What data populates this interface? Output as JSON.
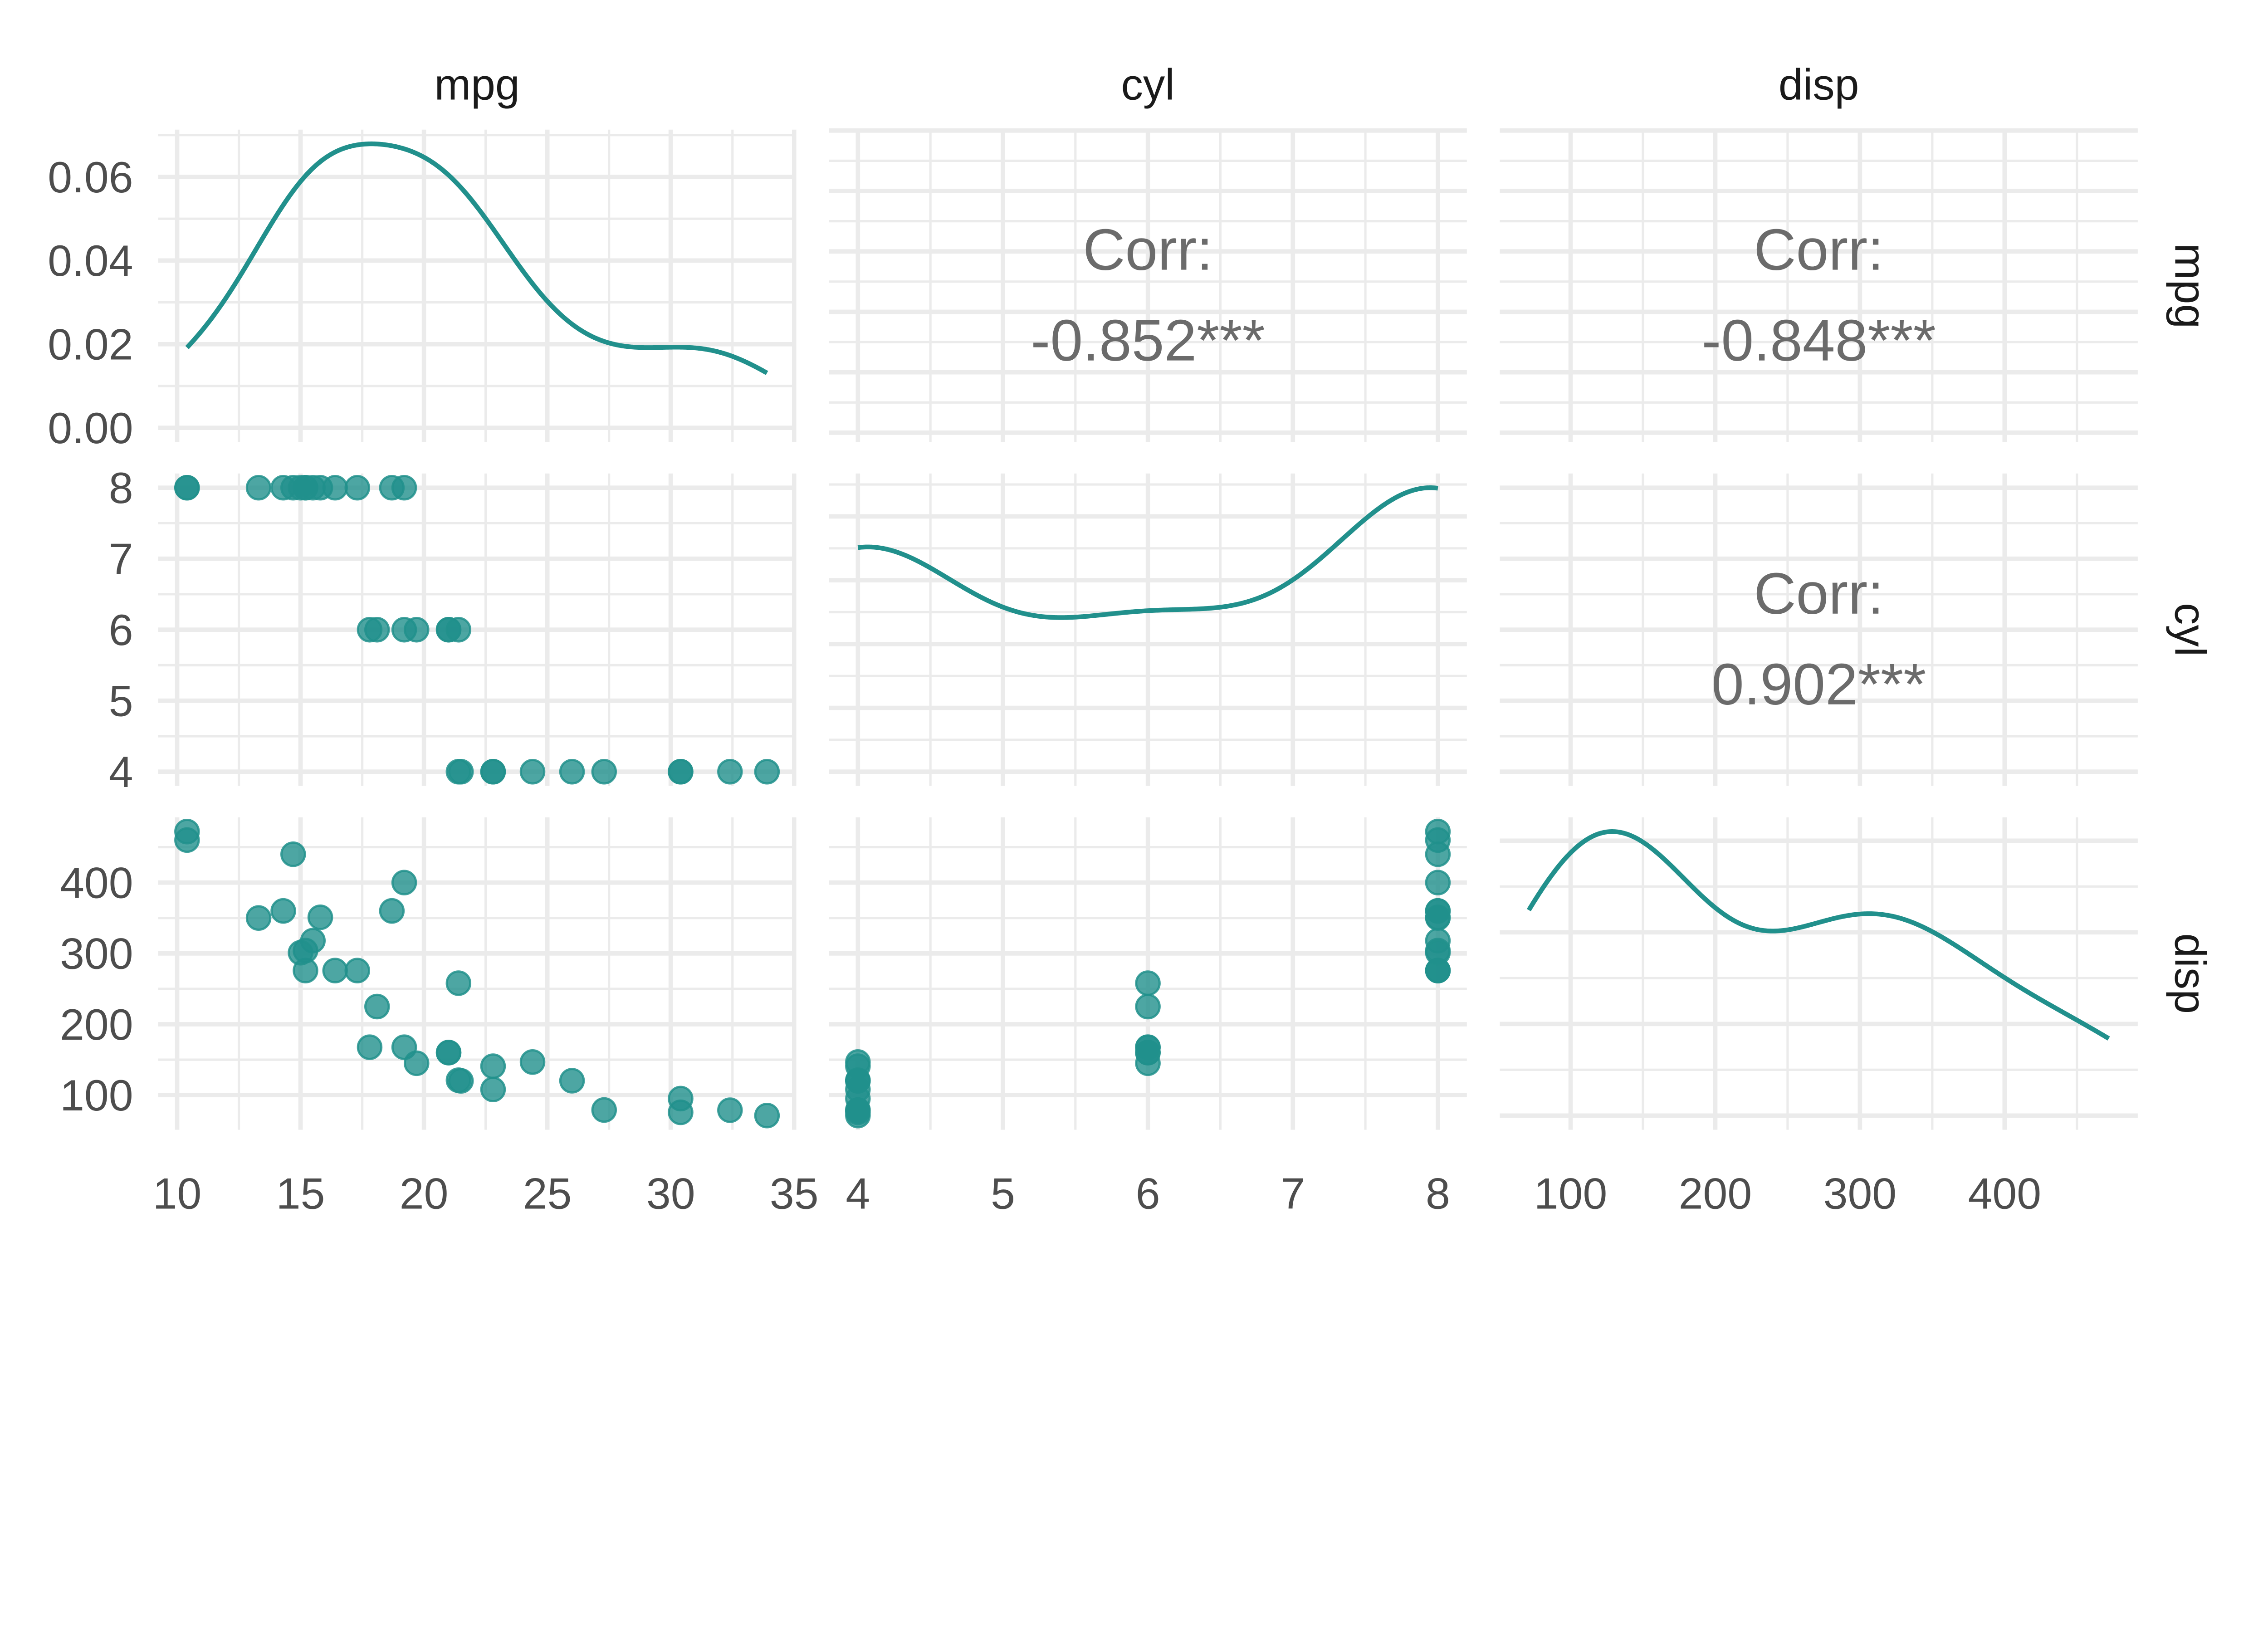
{
  "chart_data": {
    "type": "scatter-matrix",
    "diagonal": "density",
    "lower": "scatter",
    "upper": "correlation",
    "variables": [
      "mpg",
      "cyl",
      "disp"
    ],
    "strip_labels": {
      "top": [
        "mpg",
        "cyl",
        "disp"
      ],
      "right": [
        "mpg",
        "cyl",
        "disp"
      ]
    },
    "data": {
      "mpg": [
        21,
        21,
        22.8,
        21.4,
        18.7,
        18.1,
        14.3,
        24.4,
        22.8,
        19.2,
        17.8,
        16.4,
        17.3,
        15.2,
        10.4,
        10.4,
        14.7,
        32.4,
        30.4,
        33.9,
        21.5,
        15.5,
        15.2,
        13.3,
        19.2,
        27.3,
        26,
        30.4,
        15.8,
        19.7,
        15,
        21.4
      ],
      "cyl": [
        6,
        6,
        4,
        6,
        8,
        6,
        8,
        4,
        4,
        6,
        6,
        8,
        8,
        8,
        8,
        8,
        8,
        4,
        4,
        4,
        4,
        8,
        8,
        8,
        8,
        4,
        4,
        4,
        8,
        6,
        8,
        4
      ],
      "disp": [
        160,
        160,
        108,
        258,
        360,
        225,
        360,
        146.7,
        140.8,
        167.6,
        167.6,
        275.8,
        275.8,
        275.8,
        472,
        460,
        440,
        78.7,
        75.7,
        71.1,
        120.1,
        318,
        304,
        350,
        400,
        79,
        120.3,
        95.1,
        351,
        145,
        301,
        121
      ]
    },
    "correlations": [
      {
        "row": "mpg",
        "col": "cyl",
        "label": "Corr:",
        "value": "-0.852***"
      },
      {
        "row": "mpg",
        "col": "disp",
        "label": "Corr:",
        "value": "-0.848***"
      },
      {
        "row": "cyl",
        "col": "disp",
        "label": "Corr:",
        "value": "0.902***"
      }
    ],
    "x_tick_labels": {
      "mpg": [
        "10",
        "15",
        "20",
        "25",
        "30",
        "35"
      ],
      "cyl": [
        "4",
        "5",
        "6",
        "7",
        "8"
      ],
      "disp": [
        "100",
        "200",
        "300",
        "400"
      ]
    },
    "y_tick_labels": {
      "mpg": [
        "0.00",
        "0.02",
        "0.04",
        "0.06"
      ],
      "cyl": [
        "4",
        "5",
        "6",
        "7",
        "8"
      ],
      "disp": [
        "100",
        "200",
        "300",
        "400"
      ]
    },
    "grid": true,
    "colors": {
      "series": "#21908C",
      "grid": "#EBEBEB",
      "corr_text": "#6B6B6B",
      "tick_text": "#4D4D4D"
    }
  }
}
